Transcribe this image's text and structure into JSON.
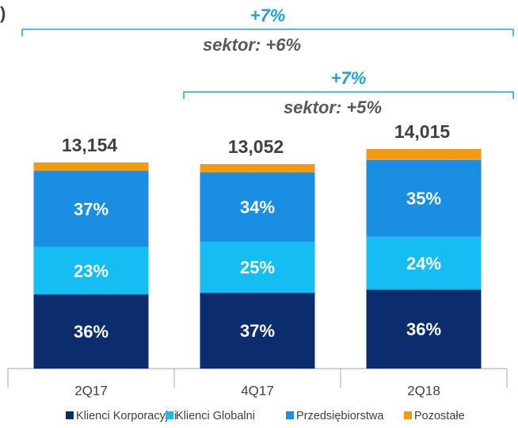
{
  "chart_data": {
    "type": "stacked_bar",
    "title": ")",
    "categories": [
      "2Q17",
      "4Q17",
      "2Q18"
    ],
    "totals": {
      "values": [
        13154,
        13052,
        14015
      ],
      "value_labels": [
        "13,154",
        "13,052",
        "14,015"
      ]
    },
    "series": [
      {
        "name": "Klienci Korporacyjni",
        "color": "#0b2d6e",
        "values": [
          36,
          37,
          36
        ],
        "value_labels": [
          "36%",
          "37%",
          "36%"
        ]
      },
      {
        "name": "Klienci Globalni",
        "color": "#16bdf2",
        "values": [
          23,
          25,
          24
        ],
        "value_labels": [
          "23%",
          "25%",
          "24%"
        ]
      },
      {
        "name": "Przedsiębiorstwa",
        "color": "#1a8ee3",
        "values": [
          37,
          34,
          35
        ],
        "value_labels": [
          "37%",
          "34%",
          "35%"
        ]
      },
      {
        "name": "Pozostałe",
        "color": "#f39a12",
        "values": [
          4,
          4,
          5
        ]
      }
    ],
    "annotations": [
      {
        "change": "+7%",
        "sector": "sektor: +6%"
      },
      {
        "change": "+7%",
        "sector": "sektor: +5%"
      }
    ]
  }
}
